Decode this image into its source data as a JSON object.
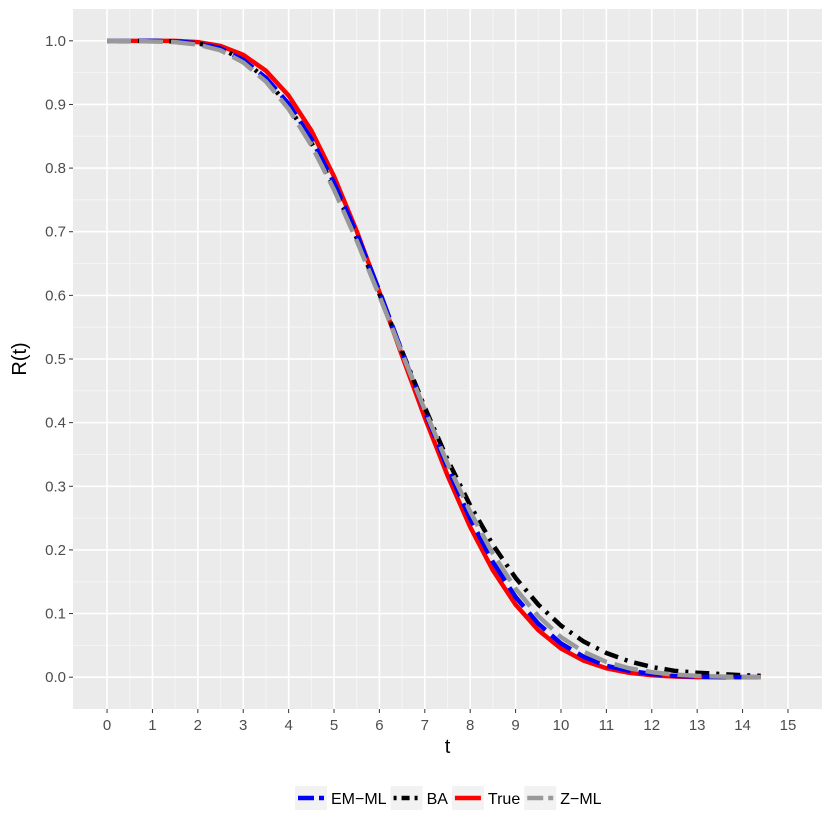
{
  "chart_data": {
    "type": "line",
    "title": "",
    "xlabel": "t",
    "ylabel": "R(t)",
    "xlim": [
      -0.75,
      15.75
    ],
    "ylim": [
      -0.05,
      1.05
    ],
    "xticks": [
      0,
      1,
      2,
      3,
      4,
      5,
      6,
      7,
      8,
      9,
      10,
      11,
      12,
      13,
      14,
      15
    ],
    "yticks": [
      0.0,
      0.1,
      0.2,
      0.3,
      0.4,
      0.5,
      0.6,
      0.7,
      0.8,
      0.9,
      1.0
    ],
    "xtick_labels": [
      "0",
      "1",
      "2",
      "3",
      "4",
      "5",
      "6",
      "7",
      "8",
      "9",
      "10",
      "11",
      "12",
      "13",
      "14",
      "15"
    ],
    "ytick_labels": [
      "0.0",
      "0.1",
      "0.2",
      "0.3",
      "0.4",
      "0.5",
      "0.6",
      "0.7",
      "0.8",
      "0.9",
      "1.0"
    ],
    "grid": true,
    "legend_position": "bottom",
    "x": [
      0,
      0.5,
      1,
      1.5,
      2,
      2.5,
      3,
      3.5,
      4,
      4.5,
      5,
      5.5,
      6,
      6.5,
      7,
      7.5,
      8,
      8.5,
      9,
      9.5,
      10,
      10.5,
      11,
      11.5,
      12,
      12.5,
      13,
      13.5,
      14,
      14.4
    ],
    "series": [
      {
        "name": "EM−ML",
        "color": "#0000ff",
        "dash": "longdash",
        "values": [
          1.0,
          1.0,
          1.0,
          0.999,
          0.996,
          0.988,
          0.97,
          0.942,
          0.901,
          0.846,
          0.777,
          0.697,
          0.607,
          0.511,
          0.418,
          0.329,
          0.249,
          0.181,
          0.126,
          0.084,
          0.053,
          0.032,
          0.018,
          0.01,
          0.005,
          0.002,
          0.001,
          0.0,
          0.0,
          0.0
        ]
      },
      {
        "name": "BA",
        "color": "#000000",
        "dash": "dotdash",
        "values": [
          1.0,
          1.0,
          1.0,
          0.999,
          0.996,
          0.988,
          0.97,
          0.94,
          0.897,
          0.84,
          0.77,
          0.69,
          0.602,
          0.512,
          0.424,
          0.342,
          0.27,
          0.208,
          0.156,
          0.114,
          0.081,
          0.056,
          0.038,
          0.025,
          0.016,
          0.01,
          0.007,
          0.005,
          0.003,
          0.002
        ]
      },
      {
        "name": "True",
        "color": "#ff0000",
        "dash": "solid",
        "values": [
          1.0,
          1.0,
          1.0,
          1.0,
          0.998,
          0.992,
          0.978,
          0.953,
          0.914,
          0.859,
          0.787,
          0.701,
          0.605,
          0.505,
          0.408,
          0.317,
          0.236,
          0.168,
          0.114,
          0.074,
          0.045,
          0.026,
          0.014,
          0.007,
          0.003,
          0.001,
          0.0,
          0.0,
          0.0,
          0.0
        ]
      },
      {
        "name": "Z−ML",
        "color": "#999999",
        "dash": "longdash",
        "values": [
          1.0,
          1.0,
          0.999,
          0.998,
          0.994,
          0.985,
          0.966,
          0.936,
          0.893,
          0.836,
          0.766,
          0.686,
          0.599,
          0.509,
          0.42,
          0.336,
          0.26,
          0.194,
          0.139,
          0.096,
          0.063,
          0.04,
          0.024,
          0.014,
          0.008,
          0.004,
          0.002,
          0.001,
          0.0,
          0.0
        ]
      }
    ]
  }
}
